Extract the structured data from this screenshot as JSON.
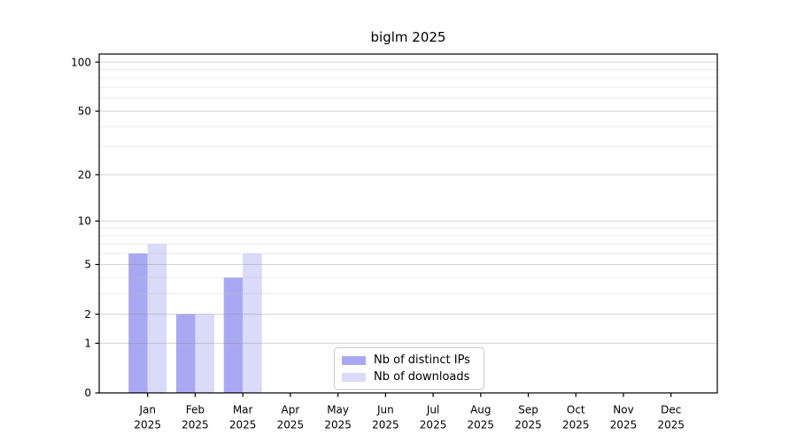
{
  "title": "biglm 2025",
  "legend": {
    "items": [
      {
        "label": "Nb of distinct IPs"
      },
      {
        "label": "Nb of downloads"
      }
    ]
  },
  "axis": {
    "y_tick_labels": [
      "0",
      "1",
      "2",
      "5",
      "10",
      "20",
      "50",
      "100"
    ],
    "x_tick_labels": [
      "Jan 2025",
      "Feb 2025",
      "Mar 2025",
      "Apr 2025",
      "May 2025",
      "Jun 2025",
      "Jul 2025",
      "Aug 2025",
      "Sep 2025",
      "Oct 2025",
      "Nov 2025",
      "Dec 2025"
    ]
  },
  "chart_data": {
    "type": "bar",
    "title": "biglm 2025",
    "categories": [
      "Jan 2025",
      "Feb 2025",
      "Mar 2025",
      "Apr 2025",
      "May 2025",
      "Jun 2025",
      "Jul 2025",
      "Aug 2025",
      "Sep 2025",
      "Oct 2025",
      "Nov 2025",
      "Dec 2025"
    ],
    "series": [
      {
        "name": "Nb of distinct IPs",
        "color": "#a9a9f3",
        "values": [
          6,
          2,
          4,
          0,
          0,
          0,
          0,
          0,
          0,
          0,
          0,
          0
        ]
      },
      {
        "name": "Nb of downloads",
        "color": "#dadaf9",
        "values": [
          7,
          2,
          6,
          0,
          0,
          0,
          0,
          0,
          0,
          0,
          0,
          0
        ]
      }
    ],
    "xlabel": "",
    "ylabel": "",
    "yscale": "log1p",
    "ylim": [
      0,
      112
    ],
    "yticks": [
      0,
      1,
      2,
      5,
      10,
      20,
      50,
      100
    ],
    "yticks_minor": [
      3,
      4,
      6,
      7,
      8,
      9,
      30,
      40,
      60,
      70,
      80,
      90
    ],
    "grid": true,
    "legend_position": "lower center",
    "colors": {
      "grid_major": "rgba(140,140,140,0.38)",
      "grid_minor": "rgba(190,190,190,0.30)",
      "spine": "#000000",
      "text": "#000000"
    }
  }
}
